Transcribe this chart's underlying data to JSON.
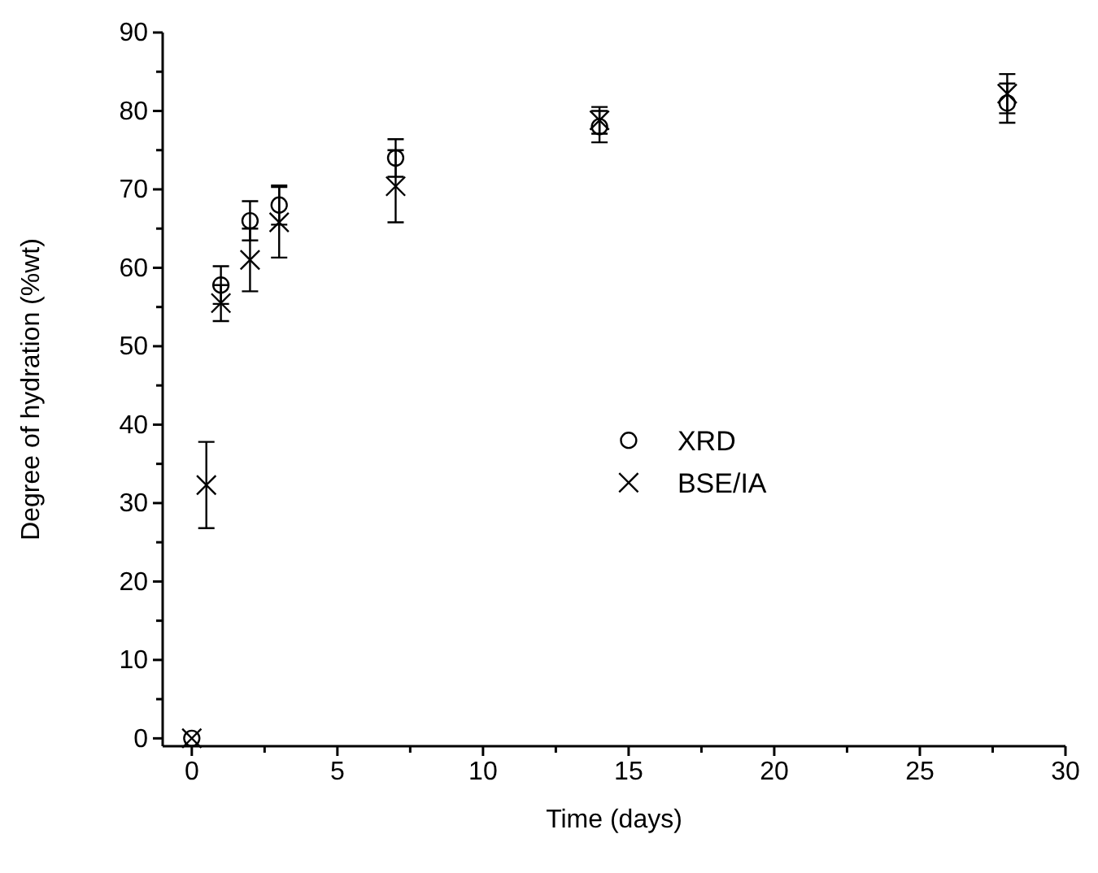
{
  "chart_data": {
    "type": "scatter",
    "xlabel": "Time (days)",
    "ylabel": "Degree of hydration (%wt)",
    "xlim": [
      -1,
      30
    ],
    "ylim": [
      -1,
      90
    ],
    "xticks": [
      0,
      {
        "value": 2.5,
        "label": null
      },
      5,
      {
        "value": 7.5,
        "label": null
      },
      10,
      {
        "value": 12.5,
        "label": null
      },
      15,
      {
        "value": 17.5,
        "label": null
      },
      20,
      {
        "value": 22.5,
        "label": null
      },
      25,
      {
        "value": 27.5,
        "label": null
      },
      30
    ],
    "yticks": [
      0,
      {
        "value": 5,
        "label": null
      },
      10,
      {
        "value": 15,
        "label": null
      },
      20,
      {
        "value": 25,
        "label": null
      },
      30,
      {
        "value": 35,
        "label": null
      },
      40,
      {
        "value": 45,
        "label": null
      },
      50,
      {
        "value": 55,
        "label": null
      },
      60,
      {
        "value": 65,
        "label": null
      },
      70,
      {
        "value": 75,
        "label": null
      },
      80,
      {
        "value": 85,
        "label": null
      },
      90
    ],
    "grid": false,
    "legend": "center",
    "series": [
      {
        "name": "XRD",
        "color": "#000000",
        "marker": "circle",
        "x": [
          0,
          1,
          2,
          3,
          7,
          14,
          28
        ],
        "values": [
          0,
          57.8,
          66,
          68,
          74,
          78,
          81
        ],
        "errors": [
          null,
          2.4,
          2.5,
          2.5,
          2.4,
          2,
          2.5
        ]
      },
      {
        "name": "BSE/IA",
        "color": "#000000",
        "marker": "cross",
        "x": [
          0,
          0.5,
          1,
          2,
          3,
          7,
          14,
          28
        ],
        "values": [
          0,
          32.3,
          55.5,
          61,
          65.8,
          70.4,
          78.8,
          82.2
        ],
        "errors": [
          null,
          5.5,
          2.3,
          4,
          4.5,
          4.6,
          1.7,
          2.5
        ]
      }
    ]
  }
}
